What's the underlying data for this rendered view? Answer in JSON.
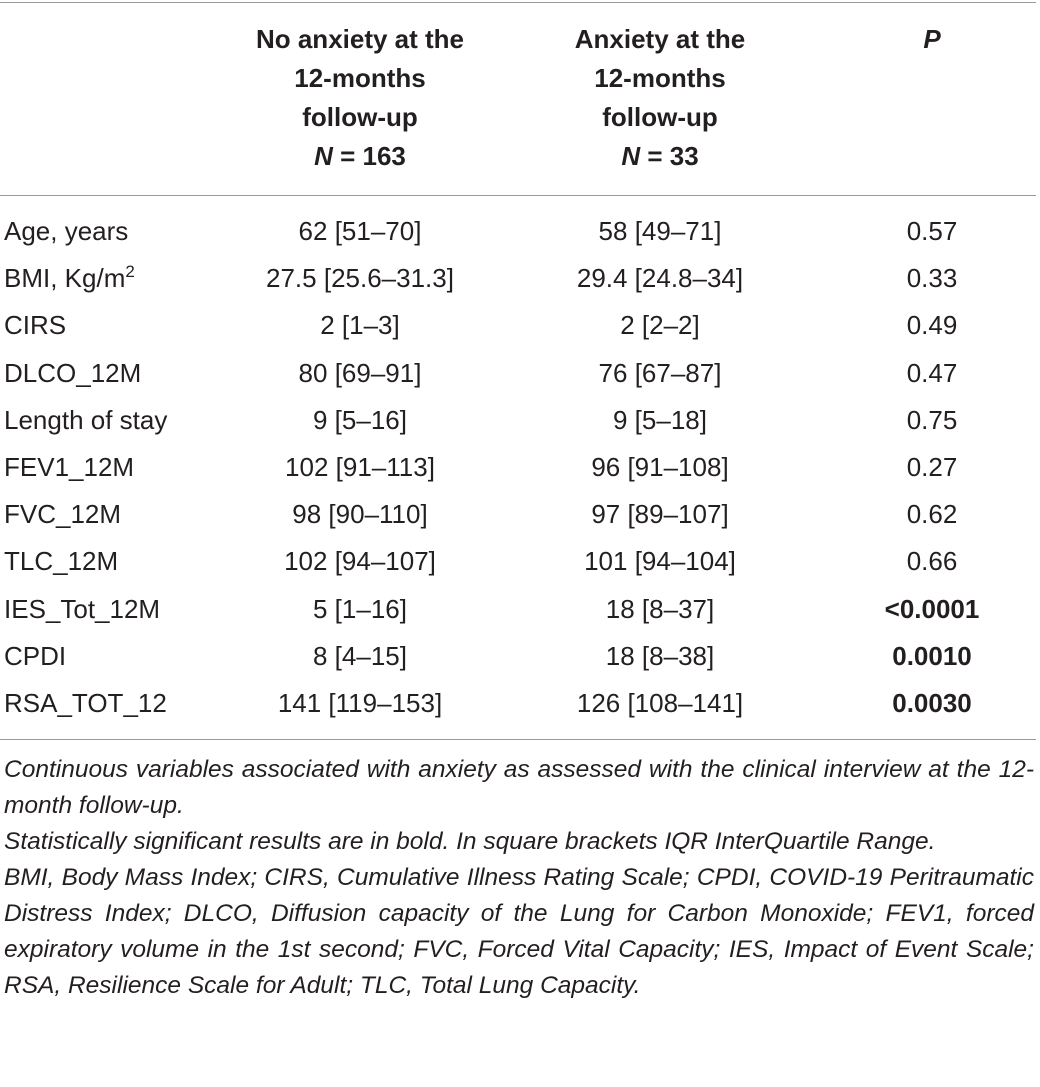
{
  "table": {
    "header": {
      "col1": {
        "lines": [
          "No anxiety at the",
          "12-months",
          "follow-up"
        ],
        "n_label": "N",
        "n_value": "= 163"
      },
      "col2": {
        "lines": [
          "Anxiety at the",
          "12-months",
          "follow-up"
        ],
        "n_label": "N",
        "n_value": "= 33"
      },
      "col3": "P"
    },
    "rows": [
      {
        "label": "Age, years",
        "label_sup": "",
        "no_anxiety": "62 [51–70]",
        "anxiety": "58 [49–71]",
        "p": "0.57",
        "p_bold": false
      },
      {
        "label": "BMI, Kg/m",
        "label_sup": "2",
        "no_anxiety": "27.5 [25.6–31.3]",
        "anxiety": "29.4 [24.8–34]",
        "p": "0.33",
        "p_bold": false
      },
      {
        "label": "CIRS",
        "label_sup": "",
        "no_anxiety": "2 [1–3]",
        "anxiety": "2 [2–2]",
        "p": "0.49",
        "p_bold": false
      },
      {
        "label": "DLCO_12M",
        "label_sup": "",
        "no_anxiety": "80 [69–91]",
        "anxiety": "76 [67–87]",
        "p": "0.47",
        "p_bold": false
      },
      {
        "label": "Length of stay",
        "label_sup": "",
        "no_anxiety": "9 [5–16]",
        "anxiety": "9 [5–18]",
        "p": "0.75",
        "p_bold": false
      },
      {
        "label": "FEV1_12M",
        "label_sup": "",
        "no_anxiety": "102 [91–113]",
        "anxiety": "96 [91–108]",
        "p": "0.27",
        "p_bold": false
      },
      {
        "label": "FVC_12M",
        "label_sup": "",
        "no_anxiety": "98 [90–110]",
        "anxiety": "97 [89–107]",
        "p": "0.62",
        "p_bold": false
      },
      {
        "label": "TLC_12M",
        "label_sup": "",
        "no_anxiety": "102 [94–107]",
        "anxiety": "101 [94–104]",
        "p": "0.66",
        "p_bold": false
      },
      {
        "label": "IES_Tot_12M",
        "label_sup": "",
        "no_anxiety": "5 [1–16]",
        "anxiety": "18 [8–37]",
        "p": "<0.0001",
        "p_bold": true
      },
      {
        "label": "CPDI",
        "label_sup": "",
        "no_anxiety": "8 [4–15]",
        "anxiety": "18 [8–38]",
        "p": "0.0010",
        "p_bold": true
      },
      {
        "label": "RSA_TOT_12",
        "label_sup": "",
        "no_anxiety": "141 [119–153]",
        "anxiety": "126 [108–141]",
        "p": "0.0030",
        "p_bold": true
      }
    ]
  },
  "footnotes": [
    "Continuous variables associated with anxiety as assessed with the clinical interview at the 12-month follow-up.",
    "Statistically significant results are in bold. In square brackets IQR InterQuartile Range.",
    "BMI, Body Mass Index; CIRS, Cumulative Illness Rating Scale; CPDI, COVID-19 Peritraumatic Distress Index; DLCO, Diffusion capacity of the Lung for Carbon Monoxide; FEV1, forced expiratory volume in the 1st second; FVC, Forced Vital Capacity; IES, Impact of Event Scale; RSA, Resilience Scale for Adult; TLC, Total Lung Capacity."
  ]
}
